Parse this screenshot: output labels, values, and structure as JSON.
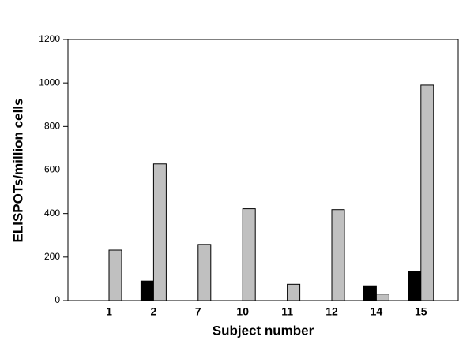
{
  "chart_data": {
    "type": "bar",
    "x_label": "Subject number",
    "y_label": "ELISPOTs/million cells",
    "categories": [
      "1",
      "2",
      "7",
      "10",
      "11",
      "12",
      "14",
      "15"
    ],
    "series": [
      {
        "color": "#000000",
        "values": [
          0,
          90,
          0,
          0,
          0,
          0,
          68,
          133
        ]
      },
      {
        "color": "#c0c0c0",
        "values": [
          232,
          628,
          258,
          422,
          75,
          418,
          30,
          990
        ]
      }
    ],
    "ylim": [
      0,
      1200
    ],
    "yticks": [
      0,
      200,
      400,
      600,
      800,
      1000,
      1200
    ],
    "grid": false
  }
}
